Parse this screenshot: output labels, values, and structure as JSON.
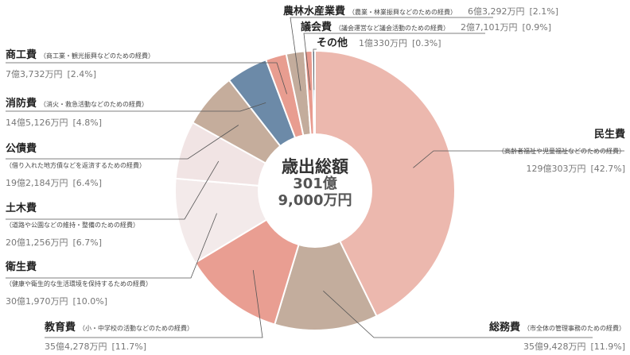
{
  "chart_data": {
    "type": "pie",
    "center": {
      "title": "歳出総額",
      "total_line1": "301億",
      "total_line2": "9,000万円"
    },
    "total": 301.9,
    "unit": "億円",
    "slices": [
      {
        "id": "minsei",
        "name": "民生費",
        "desc": "（高齢者福祉や児童福祉などのための経費）",
        "amount": "129億303万円",
        "pct_label": "[42.7%]",
        "value": 42.7,
        "color": "#ecb8ae"
      },
      {
        "id": "somu",
        "name": "総務費",
        "desc": "（市全体の管理事務のための経費）",
        "amount": "35億9,428万円",
        "pct_label": "[11.9%]",
        "value": 11.9,
        "color": "#c3ad9d"
      },
      {
        "id": "kyoiku",
        "name": "教育費",
        "desc": "（小・中学校の活動などのための経費）",
        "amount": "35億4,278万円",
        "pct_label": "[11.7%]",
        "value": 11.7,
        "color": "#e99e92"
      },
      {
        "id": "eisei",
        "name": "衛生費",
        "desc": "（健康や衛生的な生活環境を保持するための経費）",
        "amount": "30億1,970万円",
        "pct_label": "[10.0%]",
        "value": 10.0,
        "color": "#f3eaea"
      },
      {
        "id": "doboku",
        "name": "土木費",
        "desc": "（道路や公園などの維持・整備のための経費）",
        "amount": "20億1,256万円",
        "pct_label": "[6.7%]",
        "value": 6.7,
        "color": "#f1e4e4"
      },
      {
        "id": "kosai",
        "name": "公債費",
        "desc": "（借り入れた地方債などを返済するための経費）",
        "amount": "19億2,184万円",
        "pct_label": "[6.4%]",
        "value": 6.4,
        "color": "#c5ad9c"
      },
      {
        "id": "shobo",
        "name": "消防費",
        "desc": "（消火・救急活動などのための経費）",
        "amount": "14億5,126万円",
        "pct_label": "[4.8%]",
        "value": 4.8,
        "color": "#6c8aa8"
      },
      {
        "id": "shoko",
        "name": "商工費",
        "desc": "（商工業・観光振興などのための経費）",
        "amount": "7億3,732万円",
        "pct_label": "[2.4%]",
        "value": 2.4,
        "color": "#e89d90"
      },
      {
        "id": "norin",
        "name": "農林水産業費",
        "desc": "（農業・林業振興などのための経費）",
        "amount": "6億3,292万円",
        "pct_label": "[2.1%]",
        "value": 2.1,
        "color": "#c3ac9c"
      },
      {
        "id": "gikai",
        "name": "議会費",
        "desc": "（議会運営など議会活動のための経費）",
        "amount": "2億7,101万円",
        "pct_label": "[0.9%]",
        "value": 0.9,
        "color": "#e89b8f"
      },
      {
        "id": "sonota",
        "name": "その他",
        "desc": "",
        "amount": "1億330万円",
        "pct_label": "[0.3%]",
        "value": 0.3,
        "color": "#6d8aa7"
      }
    ]
  }
}
